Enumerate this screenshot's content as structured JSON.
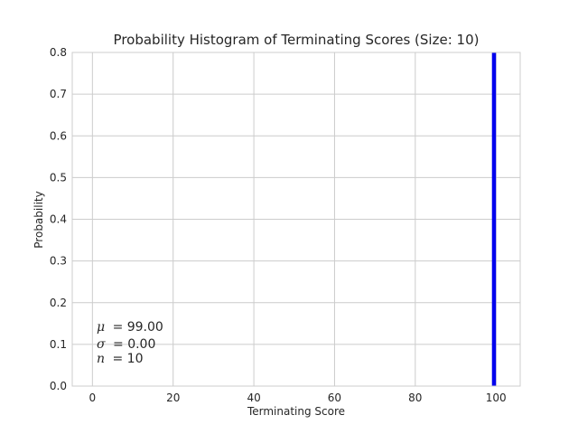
{
  "chart_data": {
    "type": "bar",
    "title": "Probability Histogram of Terminating Scores (Size: 10)",
    "xlabel": "Terminating Score",
    "ylabel": "Probability",
    "xlim": [
      -5,
      106
    ],
    "ylim": [
      0,
      0.8
    ],
    "xticks": [
      0,
      20,
      40,
      60,
      80,
      100
    ],
    "yticks": [
      0.0,
      0.1,
      0.2,
      0.3,
      0.4,
      0.5,
      0.6,
      0.7,
      0.8
    ],
    "grid": true,
    "bar_color": "#0000ee",
    "bars": [
      {
        "x": 99.5,
        "width": 1,
        "value": 0.8
      }
    ],
    "annotations": {
      "mu_symbol": "μ",
      "mu_value": "= 99.00",
      "sigma_symbol": "σ",
      "sigma_value": "= 0.00",
      "n_symbol": "n",
      "n_value": "= 10"
    }
  }
}
